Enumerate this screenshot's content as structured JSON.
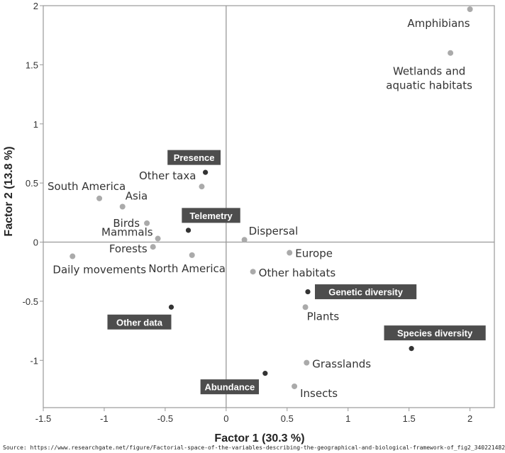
{
  "chart_data": {
    "type": "scatter",
    "xlabel": "Factor 1 (30.3 %)",
    "ylabel": "Factor 2 (13.8 %)",
    "xlim": [
      -1.5,
      2.2
    ],
    "ylim": [
      -1.4,
      2.0
    ],
    "xticks": [
      -1.5,
      -1,
      -0.5,
      0,
      0.5,
      1,
      1.5,
      2
    ],
    "yticks": [
      -1,
      -0.5,
      0,
      0.5,
      1,
      1.5,
      2
    ],
    "xtick_labels": [
      "-1.5",
      "-1",
      "-0.5",
      "0",
      "0.5",
      "1",
      "1.5",
      "2"
    ],
    "ytick_labels": [
      "-1",
      "-0.5",
      "0",
      "0.5",
      "1",
      "1.5",
      "2"
    ],
    "grid": false,
    "colors": {
      "light_point": "#aaaaaa",
      "dark_point": "#333333",
      "box_fill": "#4d4d4d",
      "box_text": "#ffffff",
      "axis": "#999999"
    },
    "points": [
      {
        "label": "Amphibians",
        "x": 2.0,
        "y": 1.97,
        "style": "light",
        "anchor": "end",
        "dx": 0,
        "dy": 25
      },
      {
        "label": "Wetlands and\naquatic habitats",
        "x": 1.84,
        "y": 1.6,
        "style": "light",
        "anchor": "middle",
        "dx": -30,
        "dy": 31
      },
      {
        "label": "Presence",
        "x": -0.17,
        "y": 0.59,
        "style": "dark",
        "boxed": true,
        "anchor": "middle",
        "dx": -16,
        "dy": -21
      },
      {
        "label": "Other taxa",
        "x": -0.2,
        "y": 0.47,
        "style": "light",
        "anchor": "end",
        "dx": -8,
        "dy": -10
      },
      {
        "label": "South America",
        "x": -1.04,
        "y": 0.37,
        "style": "light",
        "anchor": "middle",
        "dx": -18,
        "dy": -12
      },
      {
        "label": "Asia",
        "x": -0.85,
        "y": 0.3,
        "style": "light",
        "anchor": "start",
        "dx": 4,
        "dy": -10
      },
      {
        "label": "Birds",
        "x": -0.65,
        "y": 0.16,
        "style": "light",
        "anchor": "end",
        "dx": -10,
        "dy": 5
      },
      {
        "label": "Telemetry",
        "x": -0.31,
        "y": 0.1,
        "style": "dark",
        "boxed": true,
        "anchor": "middle",
        "dx": 32,
        "dy": -21
      },
      {
        "label": "Mammals",
        "x": -0.56,
        "y": 0.03,
        "style": "light",
        "anchor": "end",
        "dx": -7,
        "dy": -4
      },
      {
        "label": "Dispersal",
        "x": 0.15,
        "y": 0.02,
        "style": "light",
        "anchor": "start",
        "dx": 6,
        "dy": -7
      },
      {
        "label": "Forests",
        "x": -0.6,
        "y": -0.04,
        "style": "light",
        "anchor": "end",
        "dx": -8,
        "dy": 8
      },
      {
        "label": "Daily movements",
        "x": -1.26,
        "y": -0.12,
        "style": "light",
        "anchor": "middle",
        "dx": 38,
        "dy": 24
      },
      {
        "label": "North America",
        "x": -0.28,
        "y": -0.11,
        "style": "light",
        "anchor": "middle",
        "dx": -7,
        "dy": 24
      },
      {
        "label": "Europe",
        "x": 0.52,
        "y": -0.09,
        "style": "light",
        "anchor": "start",
        "dx": 8,
        "dy": 6
      },
      {
        "label": "Other habitats",
        "x": 0.22,
        "y": -0.25,
        "style": "light",
        "anchor": "start",
        "dx": 8,
        "dy": 7
      },
      {
        "label": "Genetic diversity",
        "x": 0.67,
        "y": -0.42,
        "style": "dark",
        "boxed": true,
        "anchor": "start",
        "dx": 10,
        "dy": 0
      },
      {
        "label": "Plants",
        "x": 0.65,
        "y": -0.55,
        "style": "light",
        "anchor": "start",
        "dx": 2,
        "dy": 18
      },
      {
        "label": "Other data",
        "x": -0.45,
        "y": -0.55,
        "style": "dark",
        "boxed": true,
        "anchor": "middle",
        "dx": -45,
        "dy": 21
      },
      {
        "label": "Species diversity",
        "x": 1.52,
        "y": -0.9,
        "style": "dark",
        "boxed": true,
        "anchor": "middle",
        "dx": 33,
        "dy": -22
      },
      {
        "label": "Grasslands",
        "x": 0.66,
        "y": -1.02,
        "style": "light",
        "anchor": "start",
        "dx": 8,
        "dy": 7
      },
      {
        "label": "Abundance",
        "x": 0.32,
        "y": -1.11,
        "style": "dark",
        "boxed": true,
        "anchor": "middle",
        "dx": -50,
        "dy": 19
      },
      {
        "label": "Insects",
        "x": 0.56,
        "y": -1.22,
        "style": "light",
        "anchor": "start",
        "dx": 8,
        "dy": 15
      }
    ]
  },
  "source": "Source: https://www.researchgate.net/figure/Factorial-space-of-the-variables-describing-the-geographical-and-biological-framework-of_fig2_340221482"
}
